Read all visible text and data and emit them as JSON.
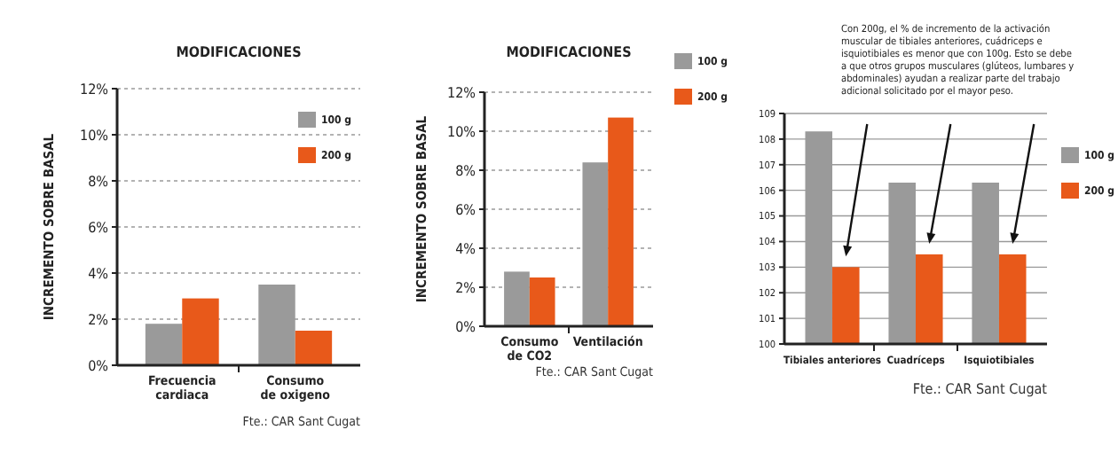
{
  "chart_data": [
    {
      "type": "bar",
      "title": "MODIFICACIONES",
      "ylabel": "INCREMENTO SOBRE BASAL",
      "categories": [
        "Frecuencia cardiaca",
        "Consumo de oxigeno"
      ],
      "series": [
        {
          "name": "100 g",
          "color": "#9a9a9a",
          "values": [
            1.8,
            3.5
          ]
        },
        {
          "name": "200 g",
          "color": "#e8591a",
          "values": [
            2.9,
            1.5
          ]
        }
      ],
      "ylim": [
        0,
        12
      ],
      "yticks": [
        {
          "value": 0,
          "label": "0%"
        },
        {
          "value": 2,
          "label": "2%"
        },
        {
          "value": 4,
          "label": "4%"
        },
        {
          "value": 6,
          "label": "6%"
        },
        {
          "value": 8,
          "label": "8%"
        },
        {
          "value": 10,
          "label": "10%"
        },
        {
          "value": 12,
          "label": "12%"
        }
      ],
      "grid": "y",
      "legend": "top right",
      "annotations": [
        "Fte.: CAR Sant Cugat"
      ]
    },
    {
      "type": "bar",
      "title": "MODIFICACIONES",
      "ylabel": "INCREMENTO SOBRE BASAL",
      "categories": [
        "Consumo de CO2",
        "Ventilación"
      ],
      "series": [
        {
          "name": "100 g",
          "color": "#9a9a9a",
          "values": [
            2.8,
            8.4
          ]
        },
        {
          "name": "200 g",
          "color": "#e8591a",
          "values": [
            2.5,
            10.7
          ]
        }
      ],
      "ylim": [
        0,
        12
      ],
      "yticks": [
        {
          "value": 0,
          "label": "0%"
        },
        {
          "value": 2,
          "label": "2%"
        },
        {
          "value": 4,
          "label": "4%"
        },
        {
          "value": 6,
          "label": "6%"
        },
        {
          "value": 8,
          "label": "8%"
        },
        {
          "value": 10,
          "label": "10%"
        },
        {
          "value": 12,
          "label": "12%"
        }
      ],
      "grid": "y",
      "legend": "right",
      "annotations": [
        "Fte.: CAR Sant Cugat"
      ]
    },
    {
      "type": "bar",
      "categories": [
        "Tibiales anteriores",
        "Cuadríceps",
        "Isquiotibiales"
      ],
      "series": [
        {
          "name": "100 g",
          "color": "#9a9a9a",
          "values": [
            108.3,
            106.3,
            106.3
          ]
        },
        {
          "name": "200 g",
          "color": "#e8591a",
          "values": [
            103.0,
            103.5,
            103.5
          ]
        }
      ],
      "ylim": [
        100,
        109
      ],
      "yticks": [
        100,
        101,
        102,
        103,
        104,
        105,
        106,
        107,
        108,
        109
      ],
      "grid": "y",
      "legend": "right",
      "annotations": [
        "Con 200g, el % de incremento de la activación muscular de tibiales anteriores, cuádriceps e isquiotibiales es menor que con 100g. Esto se debe a que otros grupos musculares (glúteos, lumbares y abdominales) ayudan a realizar parte del trabajo adicional solicitado por el mayor peso.",
        "Fte.: CAR Sant Cugat"
      ]
    }
  ]
}
